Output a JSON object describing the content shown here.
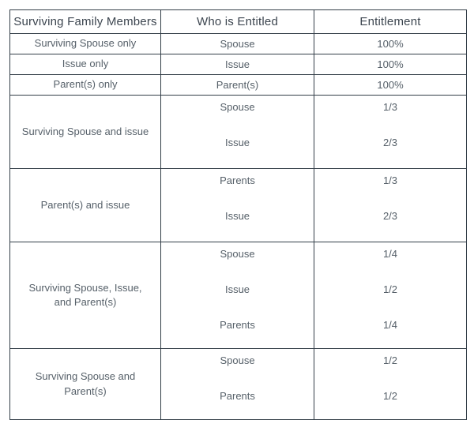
{
  "table": {
    "headers": [
      "Surviving Family Members",
      "Who is Entitled",
      "Entitlement"
    ],
    "sections": [
      {
        "family": "Surviving Spouse only",
        "entries": [
          {
            "who": "Spouse",
            "entitlement": "100%"
          }
        ]
      },
      {
        "family": "Issue only",
        "entries": [
          {
            "who": "Issue",
            "entitlement": "100%"
          }
        ]
      },
      {
        "family": "Parent(s) only",
        "entries": [
          {
            "who": "Parent(s)",
            "entitlement": "100%"
          }
        ]
      },
      {
        "family": "Surviving Spouse and issue",
        "entries": [
          {
            "who": "Spouse",
            "entitlement": "1/3"
          },
          {
            "who": "Issue",
            "entitlement": "2/3"
          }
        ]
      },
      {
        "family": "Parent(s) and issue",
        "entries": [
          {
            "who": "Parents",
            "entitlement": "1/3"
          },
          {
            "who": "Issue",
            "entitlement": "2/3"
          }
        ]
      },
      {
        "family": "Surviving Spouse, Issue, and Parent(s)",
        "entries": [
          {
            "who": "Spouse",
            "entitlement": "1/4"
          },
          {
            "who": "Issue",
            "entitlement": "1/2"
          },
          {
            "who": "Parents",
            "entitlement": "1/4"
          }
        ]
      },
      {
        "family": "Surviving Spouse and Parent(s)",
        "entries": [
          {
            "who": "Spouse",
            "entitlement": "1/2"
          },
          {
            "who": "Parents",
            "entitlement": "1/2"
          }
        ]
      }
    ],
    "colors": {
      "border": "#333e48",
      "header_text": "#3c454f",
      "body_text": "#566069",
      "background": "#ffffff"
    }
  }
}
